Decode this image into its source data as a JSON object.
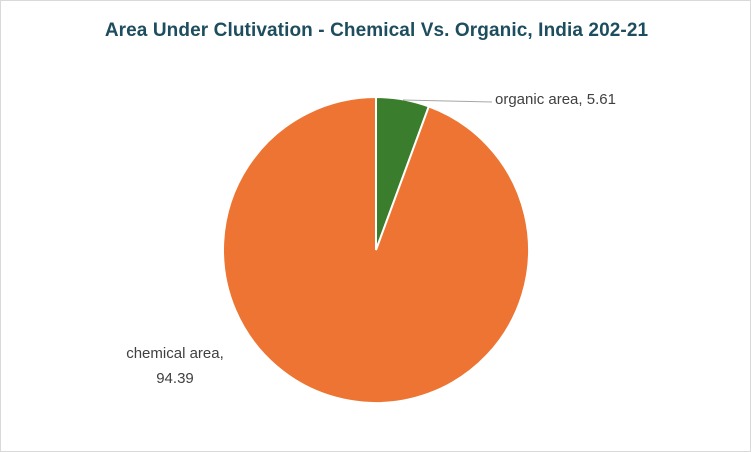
{
  "chart_data": {
    "type": "pie",
    "title": "Area Under Clutivation - Chemical Vs. Organic, India 202-21",
    "slices": [
      {
        "label": "organic area",
        "value": 5.61,
        "display": "organic area, 5.61",
        "color": "#3a7d2c"
      },
      {
        "label": "chemical area",
        "value": 94.39,
        "display_line1": "chemical area,",
        "display_line2": "94.39",
        "color": "#ed7432"
      }
    ],
    "legend": "none",
    "data_labels": "outside with leader line"
  }
}
